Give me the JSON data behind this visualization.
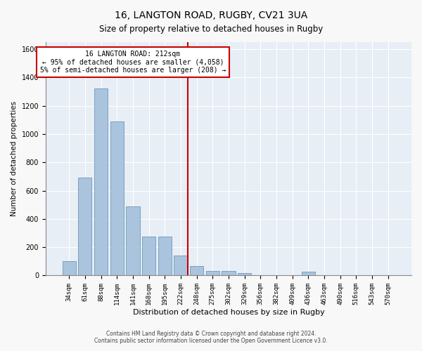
{
  "title1": "16, LANGTON ROAD, RUGBY, CV21 3UA",
  "title2": "Size of property relative to detached houses in Rugby",
  "xlabel": "Distribution of detached houses by size in Rugby",
  "ylabel": "Number of detached properties",
  "footer1": "Contains HM Land Registry data © Crown copyright and database right 2024.",
  "footer2": "Contains public sector information licensed under the Open Government Licence v3.0.",
  "annotation_line1": "16 LANGTON ROAD: 212sqm",
  "annotation_line2": "← 95% of detached houses are smaller (4,058)",
  "annotation_line3": "5% of semi-detached houses are larger (208) →",
  "bar_color": "#aac4de",
  "bar_edge_color": "#5a8ab0",
  "vline_color": "#cc0000",
  "annotation_box_color": "#cc0000",
  "categories": [
    "34sqm",
    "61sqm",
    "88sqm",
    "114sqm",
    "141sqm",
    "168sqm",
    "195sqm",
    "222sqm",
    "248sqm",
    "275sqm",
    "302sqm",
    "329sqm",
    "356sqm",
    "382sqm",
    "409sqm",
    "436sqm",
    "463sqm",
    "490sqm",
    "516sqm",
    "543sqm",
    "570sqm"
  ],
  "values": [
    100,
    690,
    1320,
    1090,
    490,
    275,
    275,
    140,
    65,
    30,
    30,
    15,
    3,
    0,
    0,
    28,
    0,
    0,
    0,
    0,
    0
  ],
  "vline_x": 7,
  "ylim": [
    0,
    1650
  ],
  "yticks": [
    0,
    200,
    400,
    600,
    800,
    1000,
    1200,
    1400,
    1600
  ],
  "background_color": "#e8eef5",
  "grid_color": "#ffffff",
  "figsize": [
    6.0,
    5.0
  ],
  "dpi": 100
}
